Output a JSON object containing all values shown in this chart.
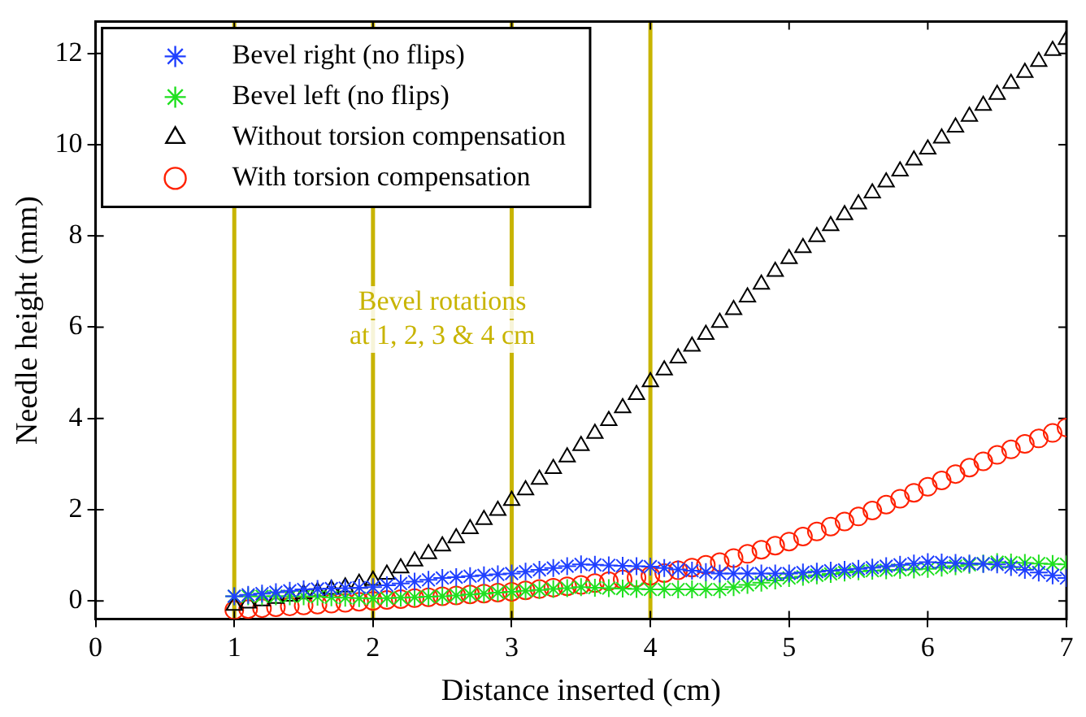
{
  "chart_data": {
    "type": "scatter",
    "xlabel": "Distance inserted (cm)",
    "ylabel": "Needle height (mm)",
    "xlim": [
      0,
      7
    ],
    "xticks": [
      0,
      1,
      2,
      3,
      4,
      5,
      6,
      7
    ],
    "ylim": [
      -0.4,
      12.7
    ],
    "yticks": [
      0,
      2,
      4,
      6,
      8,
      10,
      12
    ],
    "grid": false,
    "legend": "top left",
    "x": [
      1.0,
      1.1,
      1.2,
      1.3,
      1.4,
      1.5,
      1.6,
      1.7,
      1.8,
      1.9,
      2.0,
      2.1,
      2.2,
      2.3,
      2.4,
      2.5,
      2.6,
      2.7,
      2.8,
      2.9,
      3.0,
      3.1,
      3.2,
      3.3,
      3.4,
      3.5,
      3.6,
      3.7,
      3.8,
      3.9,
      4.0,
      4.1,
      4.2,
      4.3,
      4.4,
      4.5,
      4.6,
      4.7,
      4.8,
      4.9,
      5.0,
      5.1,
      5.2,
      5.3,
      5.4,
      5.5,
      5.6,
      5.7,
      5.8,
      5.9,
      6.0,
      6.1,
      6.2,
      6.3,
      6.4,
      6.5,
      6.6,
      6.7,
      6.8,
      6.9,
      7.0
    ],
    "series": [
      {
        "name": "Bevel right (no flips)",
        "color": "#2040ff",
        "marker": "cross",
        "values": [
          0.1,
          0.13,
          0.16,
          0.19,
          0.22,
          0.25,
          0.26,
          0.27,
          0.28,
          0.29,
          0.3,
          0.34,
          0.38,
          0.42,
          0.46,
          0.5,
          0.52,
          0.54,
          0.56,
          0.58,
          0.6,
          0.64,
          0.68,
          0.72,
          0.76,
          0.8,
          0.79,
          0.78,
          0.77,
          0.76,
          0.75,
          0.72,
          0.69,
          0.66,
          0.63,
          0.6,
          0.6,
          0.6,
          0.6,
          0.6,
          0.6,
          0.62,
          0.64,
          0.66,
          0.68,
          0.7,
          0.73,
          0.76,
          0.79,
          0.82,
          0.85,
          0.84,
          0.83,
          0.82,
          0.81,
          0.8,
          0.74,
          0.68,
          0.62,
          0.56,
          0.5
        ]
      },
      {
        "name": "Bevel left (no flips)",
        "color": "#20e020",
        "marker": "cross",
        "values": [
          0.1,
          0.1,
          0.1,
          0.1,
          0.1,
          0.1,
          0.09,
          0.08,
          0.07,
          0.06,
          0.05,
          0.06,
          0.07,
          0.08,
          0.09,
          0.1,
          0.12,
          0.14,
          0.16,
          0.18,
          0.2,
          0.22,
          0.24,
          0.26,
          0.28,
          0.3,
          0.29,
          0.28,
          0.27,
          0.26,
          0.25,
          0.25,
          0.25,
          0.25,
          0.25,
          0.25,
          0.3,
          0.35,
          0.4,
          0.45,
          0.5,
          0.53,
          0.56,
          0.59,
          0.62,
          0.65,
          0.66,
          0.67,
          0.68,
          0.69,
          0.7,
          0.73,
          0.76,
          0.79,
          0.82,
          0.85,
          0.84,
          0.83,
          0.82,
          0.81,
          0.8
        ]
      },
      {
        "name": "Without torsion compensation",
        "color": "#000000",
        "marker": "triangle",
        "values": [
          -0.1,
          -0.05,
          0,
          0.05,
          0.1,
          0.15,
          0.2,
          0.25,
          0.3,
          0.38,
          0.45,
          0.58,
          0.72,
          0.87,
          1.03,
          1.2,
          1.38,
          1.58,
          1.78,
          1.98,
          2.2,
          2.43,
          2.66,
          2.9,
          3.15,
          3.4,
          3.67,
          3.95,
          4.23,
          4.52,
          4.8,
          5.06,
          5.32,
          5.58,
          5.84,
          6.1,
          6.38,
          6.66,
          6.94,
          7.22,
          7.5,
          7.74,
          7.98,
          8.22,
          8.46,
          8.7,
          8.94,
          9.18,
          9.42,
          9.66,
          9.9,
          10.14,
          10.38,
          10.62,
          10.86,
          11.1,
          11.34,
          11.58,
          11.82,
          12.06,
          12.3
        ]
      },
      {
        "name": "With torsion compensation",
        "color": "#ff2000",
        "marker": "circle",
        "values": [
          -0.2,
          -0.18,
          -0.16,
          -0.14,
          -0.12,
          -0.1,
          -0.08,
          -0.06,
          -0.04,
          -0.02,
          0,
          0.02,
          0.04,
          0.06,
          0.08,
          0.1,
          0.12,
          0.14,
          0.16,
          0.18,
          0.2,
          0.23,
          0.26,
          0.29,
          0.32,
          0.35,
          0.39,
          0.43,
          0.47,
          0.51,
          0.55,
          0.61,
          0.67,
          0.73,
          0.79,
          0.85,
          0.94,
          1.03,
          1.12,
          1.21,
          1.3,
          1.41,
          1.52,
          1.63,
          1.74,
          1.85,
          1.98,
          2.11,
          2.24,
          2.37,
          2.5,
          2.64,
          2.78,
          2.92,
          3.06,
          3.2,
          3.32,
          3.44,
          3.56,
          3.68,
          3.8
        ]
      }
    ],
    "ref_lines": [
      {
        "axis": "x",
        "value": 1,
        "color": "#c8b400"
      },
      {
        "axis": "x",
        "value": 2,
        "color": "#c8b400"
      },
      {
        "axis": "x",
        "value": 3,
        "color": "#c8b400"
      },
      {
        "axis": "x",
        "value": 4,
        "color": "#c8b400"
      }
    ],
    "annotations": [
      "Bevel rotations\nat 1, 2, 3 & 4 cm"
    ]
  }
}
